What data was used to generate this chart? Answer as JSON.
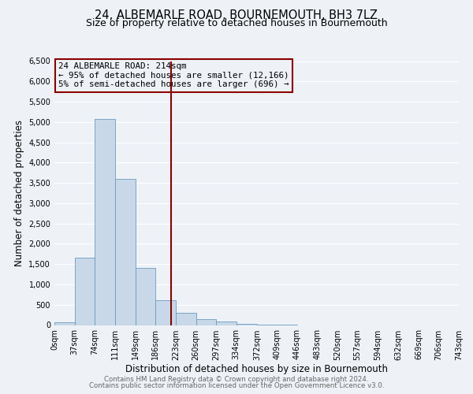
{
  "title": "24, ALBEMARLE ROAD, BOURNEMOUTH, BH3 7LZ",
  "subtitle": "Size of property relative to detached houses in Bournemouth",
  "xlabel": "Distribution of detached houses by size in Bournemouth",
  "ylabel": "Number of detached properties",
  "bin_edges": [
    0,
    37,
    74,
    111,
    149,
    186,
    223,
    260,
    297,
    334,
    372,
    409,
    446,
    483,
    520,
    557,
    594,
    632,
    669,
    706,
    743
  ],
  "bar_heights": [
    75,
    1650,
    5080,
    3600,
    1400,
    620,
    300,
    150,
    80,
    30,
    10,
    3,
    0,
    0,
    0,
    0,
    0,
    0,
    0,
    0
  ],
  "bar_color": "#c8d8e8",
  "bar_edge_color": "#6a9abf",
  "vline_x": 214,
  "vline_color": "#8b0000",
  "annotation_line1": "24 ALBEMARLE ROAD: 214sqm",
  "annotation_line2": "← 95% of detached houses are smaller (12,166)",
  "annotation_line3": "5% of semi-detached houses are larger (696) →",
  "annotation_box_color": "#8b0000",
  "ylim": [
    0,
    6500
  ],
  "yticks": [
    0,
    500,
    1000,
    1500,
    2000,
    2500,
    3000,
    3500,
    4000,
    4500,
    5000,
    5500,
    6000,
    6500
  ],
  "tick_labels": [
    "0sqm",
    "37sqm",
    "74sqm",
    "111sqm",
    "149sqm",
    "186sqm",
    "223sqm",
    "260sqm",
    "297sqm",
    "334sqm",
    "372sqm",
    "409sqm",
    "446sqm",
    "483sqm",
    "520sqm",
    "557sqm",
    "594sqm",
    "632sqm",
    "669sqm",
    "706sqm",
    "743sqm"
  ],
  "footer_line1": "Contains HM Land Registry data © Crown copyright and database right 2024.",
  "footer_line2": "Contains public sector information licensed under the Open Government Licence v3.0.",
  "background_color": "#eef2f7",
  "grid_color": "#ffffff",
  "title_fontsize": 10.5,
  "subtitle_fontsize": 9,
  "axis_label_fontsize": 8.5,
  "tick_fontsize": 7,
  "annotation_fontsize": 7.8,
  "footer_fontsize": 6.2
}
